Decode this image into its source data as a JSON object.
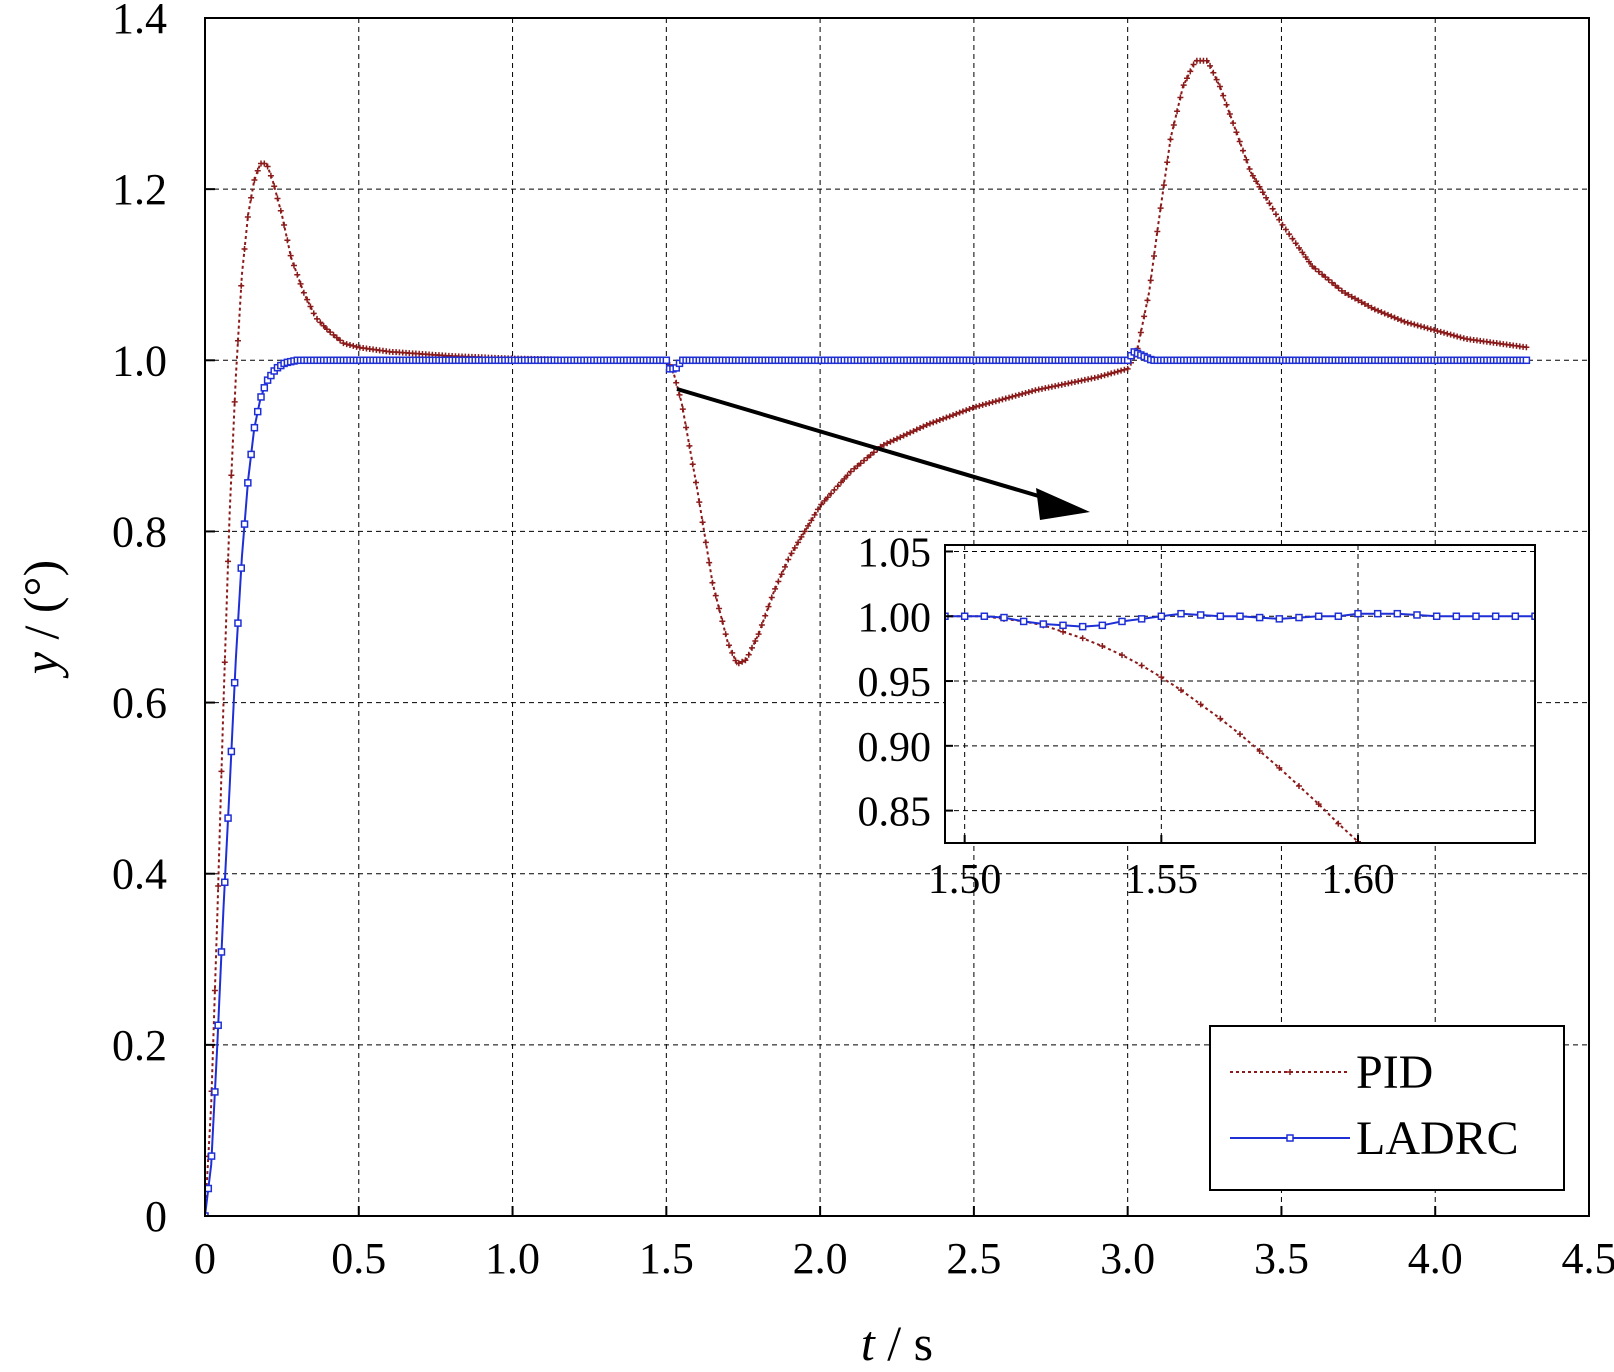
{
  "chart_data": [
    {
      "type": "line",
      "role": "main",
      "xlabel": {
        "var": "t",
        "unit": " / s"
      },
      "ylabel": {
        "var": "y",
        "unit": " / (°)"
      },
      "xlim": [
        0,
        4.5
      ],
      "ylim": [
        0,
        1.4
      ],
      "xticks": [
        0,
        0.5,
        1.0,
        1.5,
        2.0,
        2.5,
        3.0,
        3.5,
        4.0,
        4.5
      ],
      "xtick_labels": [
        "0",
        "0.5",
        "1.0",
        "1.5",
        "2.0",
        "2.5",
        "3.0",
        "3.5",
        "4.0",
        "4.5"
      ],
      "yticks": [
        0,
        0.2,
        0.4,
        0.6,
        0.8,
        1.0,
        1.2,
        1.4
      ],
      "ytick_labels": [
        "0",
        "0.2",
        "0.4",
        "0.6",
        "0.8",
        "1.0",
        "1.2",
        "1.4"
      ],
      "grid": true,
      "legend_position": "bottom-right",
      "series": [
        {
          "name": "PID",
          "color": "#8b1a1a",
          "marker": "plus",
          "linestyle": "dotted",
          "points": [
            [
              0,
              0
            ],
            [
              0.02,
              0.13
            ],
            [
              0.04,
              0.35
            ],
            [
              0.06,
              0.6
            ],
            [
              0.08,
              0.82
            ],
            [
              0.1,
              0.98
            ],
            [
              0.12,
              1.1
            ],
            [
              0.14,
              1.17
            ],
            [
              0.16,
              1.21
            ],
            [
              0.18,
              1.23
            ],
            [
              0.2,
              1.23
            ],
            [
              0.22,
              1.21
            ],
            [
              0.25,
              1.17
            ],
            [
              0.28,
              1.12
            ],
            [
              0.32,
              1.08
            ],
            [
              0.36,
              1.05
            ],
            [
              0.4,
              1.035
            ],
            [
              0.45,
              1.02
            ],
            [
              0.5,
              1.015
            ],
            [
              0.6,
              1.01
            ],
            [
              0.8,
              1.005
            ],
            [
              1.0,
              1.002
            ],
            [
              1.3,
              1.0
            ],
            [
              1.5,
              1.0
            ],
            [
              1.52,
              0.99
            ],
            [
              1.55,
              0.95
            ],
            [
              1.6,
              0.85
            ],
            [
              1.65,
              0.74
            ],
            [
              1.7,
              0.67
            ],
            [
              1.73,
              0.645
            ],
            [
              1.76,
              0.65
            ],
            [
              1.8,
              0.68
            ],
            [
              1.85,
              0.73
            ],
            [
              1.9,
              0.77
            ],
            [
              2.0,
              0.83
            ],
            [
              2.1,
              0.87
            ],
            [
              2.2,
              0.9
            ],
            [
              2.35,
              0.925
            ],
            [
              2.5,
              0.945
            ],
            [
              2.7,
              0.965
            ],
            [
              2.9,
              0.98
            ],
            [
              3.0,
              0.99
            ],
            [
              3.03,
              1.01
            ],
            [
              3.07,
              1.08
            ],
            [
              3.1,
              1.16
            ],
            [
              3.14,
              1.26
            ],
            [
              3.18,
              1.32
            ],
            [
              3.22,
              1.35
            ],
            [
              3.26,
              1.35
            ],
            [
              3.3,
              1.32
            ],
            [
              3.35,
              1.27
            ],
            [
              3.4,
              1.22
            ],
            [
              3.5,
              1.16
            ],
            [
              3.6,
              1.11
            ],
            [
              3.7,
              1.08
            ],
            [
              3.8,
              1.06
            ],
            [
              3.9,
              1.045
            ],
            [
              4.0,
              1.035
            ],
            [
              4.1,
              1.025
            ],
            [
              4.2,
              1.02
            ],
            [
              4.3,
              1.015
            ]
          ]
        },
        {
          "name": "LADRC",
          "color": "#1f2fd6",
          "marker": "square",
          "linestyle": "solid",
          "points": [
            [
              0,
              0
            ],
            [
              0.02,
              0.06
            ],
            [
              0.04,
              0.2
            ],
            [
              0.06,
              0.36
            ],
            [
              0.08,
              0.5
            ],
            [
              0.1,
              0.65
            ],
            [
              0.12,
              0.77
            ],
            [
              0.14,
              0.86
            ],
            [
              0.16,
              0.92
            ],
            [
              0.18,
              0.955
            ],
            [
              0.2,
              0.975
            ],
            [
              0.23,
              0.99
            ],
            [
              0.26,
              0.997
            ],
            [
              0.3,
              1.0
            ],
            [
              1.5,
              1.0
            ],
            [
              1.51,
              0.99
            ],
            [
              1.53,
              0.99
            ],
            [
              1.55,
              1.0
            ],
            [
              2.98,
              1.0
            ],
            [
              3.0,
              1.0
            ],
            [
              3.02,
              1.01
            ],
            [
              3.05,
              1.005
            ],
            [
              3.08,
              1.0
            ],
            [
              4.3,
              1.0
            ]
          ]
        }
      ]
    },
    {
      "type": "line",
      "role": "inset",
      "xlim": [
        1.495,
        1.645
      ],
      "ylim": [
        0.825,
        1.055
      ],
      "xticks": [
        1.5,
        1.55,
        1.6
      ],
      "xtick_labels": [
        "1.50",
        "1.55",
        "1.60"
      ],
      "yticks": [
        0.85,
        0.9,
        0.95,
        1.0,
        1.05
      ],
      "ytick_labels": [
        "0.85",
        "0.90",
        "0.95",
        "1.00",
        "1.05"
      ],
      "grid": true,
      "series": [
        {
          "name": "PID",
          "color": "#8b1a1a",
          "marker": "plus",
          "linestyle": "dotted",
          "points": [
            [
              1.495,
              1.0
            ],
            [
              1.5,
              1.0
            ],
            [
              1.505,
              1.0
            ],
            [
              1.51,
              0.998
            ],
            [
              1.515,
              0.996
            ],
            [
              1.52,
              0.993
            ],
            [
              1.525,
              0.988
            ],
            [
              1.53,
              0.983
            ],
            [
              1.535,
              0.977
            ],
            [
              1.54,
              0.97
            ],
            [
              1.545,
              0.962
            ],
            [
              1.55,
              0.953
            ],
            [
              1.555,
              0.943
            ],
            [
              1.56,
              0.932
            ],
            [
              1.565,
              0.921
            ],
            [
              1.57,
              0.909
            ],
            [
              1.575,
              0.896
            ],
            [
              1.58,
              0.883
            ],
            [
              1.585,
              0.869
            ],
            [
              1.59,
              0.855
            ],
            [
              1.595,
              0.84
            ],
            [
              1.6,
              0.826
            ]
          ]
        },
        {
          "name": "LADRC",
          "color": "#1f2fd6",
          "marker": "square",
          "linestyle": "solid",
          "points": [
            [
              1.495,
              1.0
            ],
            [
              1.5,
              1.0
            ],
            [
              1.505,
              1.0
            ],
            [
              1.51,
              0.999
            ],
            [
              1.515,
              0.996
            ],
            [
              1.52,
              0.994
            ],
            [
              1.525,
              0.993
            ],
            [
              1.53,
              0.992
            ],
            [
              1.535,
              0.993
            ],
            [
              1.54,
              0.996
            ],
            [
              1.545,
              0.998
            ],
            [
              1.55,
              1.0
            ],
            [
              1.555,
              1.002
            ],
            [
              1.56,
              1.001
            ],
            [
              1.565,
              1.0
            ],
            [
              1.57,
              1.0
            ],
            [
              1.575,
              0.999
            ],
            [
              1.58,
              0.998
            ],
            [
              1.585,
              0.999
            ],
            [
              1.59,
              1.0
            ],
            [
              1.595,
              1.0
            ],
            [
              1.6,
              1.002
            ],
            [
              1.605,
              1.002
            ],
            [
              1.61,
              1.002
            ],
            [
              1.615,
              1.001
            ],
            [
              1.62,
              1.0
            ],
            [
              1.625,
              1.0
            ],
            [
              1.63,
              1.0
            ],
            [
              1.635,
              1.0
            ],
            [
              1.64,
              1.0
            ],
            [
              1.645,
              1.0
            ]
          ]
        }
      ]
    }
  ],
  "legend": {
    "entries": [
      {
        "label": "PID",
        "color": "#8b1a1a",
        "marker": "plus",
        "linestyle": "dotted"
      },
      {
        "label": "LADRC",
        "color": "#1f2fd6",
        "marker": "square",
        "linestyle": "solid"
      }
    ]
  }
}
